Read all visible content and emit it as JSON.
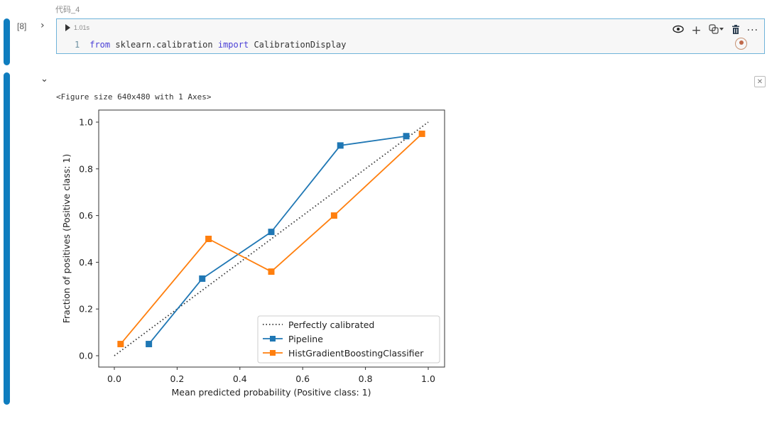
{
  "cell": {
    "label": "代码_4",
    "execution_count": "[8]",
    "run_time": "1.01s",
    "code_lines": [
      {
        "line_no": "1",
        "kw1": "from",
        "module": " sklearn.calibration ",
        "kw2": "import",
        "name": " CalibrationDisplay"
      }
    ],
    "toolbar": {
      "preview_icon": "eye-icon",
      "add_icon": "plus-icon",
      "language_icon": "python-icon",
      "delete_icon": "trash-icon",
      "more_icon": "more-icon"
    }
  },
  "output": {
    "figure_text": "<Figure size 640x480 with 1 Axes>",
    "clear_icon": "close-box-icon"
  },
  "colors": {
    "run_bar": "#0f7dbf",
    "pipeline": "#1f77b4",
    "hgb": "#ff7f0e",
    "diagonal": "#333333"
  },
  "chart_data": {
    "type": "line",
    "title": "",
    "xlabel": "Mean predicted probability (Positive class: 1)",
    "ylabel": "Fraction of positives (Positive class: 1)",
    "xlim": [
      -0.05,
      1.05
    ],
    "ylim": [
      -0.05,
      1.05
    ],
    "xticks": [
      "0.0",
      "0.2",
      "0.4",
      "0.6",
      "0.8",
      "1.0"
    ],
    "yticks": [
      "0.0",
      "0.2",
      "0.4",
      "0.6",
      "0.8",
      "1.0"
    ],
    "grid": false,
    "legend_position": "lower right",
    "series": [
      {
        "name": "Perfectly calibrated",
        "style": "dotted",
        "color": "#333333",
        "x": [
          0,
          1
        ],
        "y": [
          0,
          1
        ]
      },
      {
        "name": "Pipeline",
        "style": "solid-square",
        "color": "#1f77b4",
        "x": [
          0.11,
          0.28,
          0.5,
          0.72,
          0.93
        ],
        "y": [
          0.05,
          0.33,
          0.53,
          0.9,
          0.94
        ]
      },
      {
        "name": "HistGradientBoostingClassifier",
        "style": "solid-square",
        "color": "#ff7f0e",
        "x": [
          0.02,
          0.3,
          0.5,
          0.7,
          0.98
        ],
        "y": [
          0.05,
          0.5,
          0.36,
          0.6,
          0.95
        ]
      }
    ]
  }
}
